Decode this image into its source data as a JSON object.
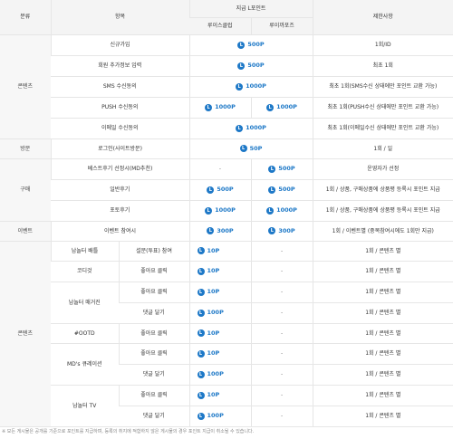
{
  "header": {
    "category": "분류",
    "item": "항목",
    "points_group": "지급 L포인트",
    "club": "루이스클럽",
    "cafe": "루이까포즈",
    "limit": "제한사항"
  },
  "icons": {
    "point": "L"
  },
  "categories": {
    "content1": "콘텐츠",
    "visit": "방문",
    "purchase": "구매",
    "event": "이벤트",
    "content2": "콘텐츠"
  },
  "rows": [
    {
      "item": "신규가입",
      "points": "500P",
      "limit": "1회/ID"
    },
    {
      "item": "회원 추가정보 입력",
      "points": "500P",
      "limit": "최초 1회"
    },
    {
      "item": "SMS 수신동의",
      "points": "1000P",
      "limit": "최초 1회(SMS수신 상태에만 포인트 교환 가능)"
    },
    {
      "item": "PUSH 수신동의",
      "club": "1000P",
      "cafe": "1000P",
      "limit": "최초 1회(PUSH수신 상태에만 포인트 교환 가능)"
    },
    {
      "item": "이메일 수신동의",
      "points": "1000P",
      "limit": "최초 1회(이메일수신 상태에만 포인트 교환 가능)"
    },
    {
      "item": "로그인(사이트방문)",
      "points": "50P",
      "limit": "1회 / 일"
    },
    {
      "item": "베스트후기 선정시(MD추천)",
      "club": "-",
      "cafe": "500P",
      "limit": "운영자가 선정"
    },
    {
      "item": "일반후기",
      "club": "500P",
      "cafe": "500P",
      "limit": "1회 / 상품, 구매상품에 상품평 등록시 포인트 지급"
    },
    {
      "item": "포토후기",
      "club": "1000P",
      "cafe": "1000P",
      "limit": "1회 / 상품, 구매상품에 상품평 등록시 포인트 지급"
    },
    {
      "item": "이벤트 참여시",
      "club": "300P",
      "cafe": "300P",
      "limit": "1회 / 이벤트별 (중복참여시에도 1회만 지급)"
    }
  ],
  "content_rows": [
    {
      "group": "남놀터 배틀",
      "sub": "설문(투표) 참여",
      "club": "10P",
      "cafe": "-",
      "limit": "1회 / 콘텐츠 별"
    },
    {
      "group": "코디것",
      "sub": "좋아요 클릭",
      "club": "10P",
      "cafe": "-",
      "limit": "1회 / 콘텐츠 별"
    },
    {
      "group": "남놀터 매거진",
      "sub": "좋아요 클릭",
      "club": "10P",
      "cafe": "-",
      "limit": "1회 / 콘텐츠 별"
    },
    {
      "sub": "댓글 달기",
      "club": "100P",
      "cafe": "-",
      "limit": "1회 / 콘텐츠 별"
    },
    {
      "group": "#OOTD",
      "sub": "좋아요 클릭",
      "club": "10P",
      "cafe": "-",
      "limit": "1회 / 콘텐츠 별"
    },
    {
      "group": "MD's 큐레이션",
      "sub": "좋아요 클릭",
      "club": "10P",
      "cafe": "-",
      "limit": "1회 / 콘텐츠 별"
    },
    {
      "sub": "댓글 달기",
      "club": "100P",
      "cafe": "-",
      "limit": "1회 / 콘텐츠 별"
    },
    {
      "group": "남놀터 TV",
      "sub": "좋아요 클릭",
      "club": "10P",
      "cafe": "-",
      "limit": "1회 / 콘텐츠 별"
    },
    {
      "sub": "댓글 달기",
      "club": "100P",
      "cafe": "-",
      "limit": "1회 / 콘텐츠 별"
    }
  ],
  "footnote": "※ 모든 게시물은 공개를 기준으로 포인트를 지급하며, 등록의 취지에 적합하지 않은 게시물의 경우 포인트 지급이 취소될 수 있습니다."
}
